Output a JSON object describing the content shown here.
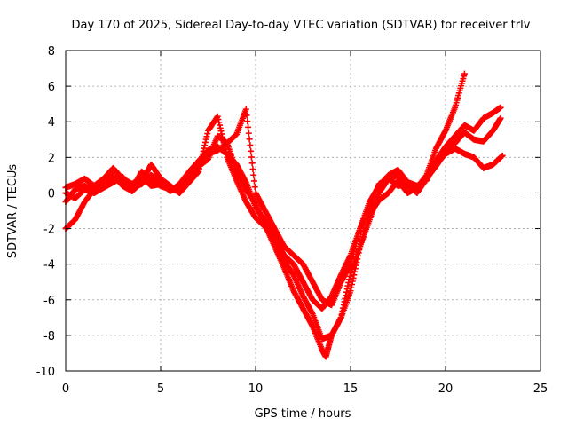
{
  "chart_data": {
    "type": "scatter",
    "title": "Day 170 of 2025, Sidereal Day-to-day VTEC variation (SDTVAR) for receiver trlv",
    "xlabel": "GPS time / hours",
    "ylabel": "SDTVAR / TECUs",
    "xlim": [
      0,
      25
    ],
    "ylim": [
      -10,
      8
    ],
    "xticks": [
      0,
      5,
      10,
      15,
      20,
      25
    ],
    "yticks": [
      -10,
      -8,
      -6,
      -4,
      -2,
      0,
      2,
      4,
      6,
      8
    ],
    "grid": true,
    "marker": "+",
    "color": "#ff0000",
    "series": [
      {
        "x": [
          0,
          0.5,
          1.0,
          1.5,
          2.0,
          2.5,
          3.0,
          3.5,
          4.0,
          4.5,
          5.0,
          5.5,
          6.0,
          6.5,
          7.0,
          7.5,
          8.0,
          8.5,
          9.0,
          9.5,
          10.0,
          10.5,
          11.0,
          11.5,
          12.0,
          12.5,
          13.0,
          13.5,
          14.0,
          14.5,
          15.0,
          15.5,
          16.0,
          16.5,
          17.0,
          17.5,
          18.0,
          18.5,
          19.0,
          19.5,
          20.0,
          20.5,
          21.0,
          21.5,
          22.0,
          22.5,
          22.9
        ],
        "y": [
          0.3,
          0.5,
          0.8,
          0.4,
          0.8,
          1.4,
          0.8,
          0.5,
          0.9,
          0.4,
          0.5,
          0.3,
          0.2,
          1.0,
          1.8,
          2.2,
          2.4,
          2.8,
          3.3,
          4.7,
          0.0,
          -1.0,
          -2.0,
          -3.0,
          -3.5,
          -4.0,
          -5.0,
          -6.0,
          -6.3,
          -5.0,
          -4.0,
          -2.0,
          -0.5,
          0.4,
          1.0,
          1.3,
          0.6,
          0.4,
          0.7,
          1.8,
          2.6,
          3.2,
          3.8,
          3.5,
          4.2,
          4.5,
          4.8
        ]
      },
      {
        "x": [
          0,
          0.5,
          1.0,
          1.5,
          2.0,
          2.5,
          3.0,
          3.5,
          4.0,
          4.5,
          5.0,
          5.5,
          6.0,
          6.5,
          7.0,
          7.5,
          8.0,
          8.5,
          9.0,
          9.5,
          10.0,
          10.5,
          11.0,
          11.5,
          12.0,
          12.5,
          13.0,
          13.5,
          13.7,
          14.0,
          14.5,
          15.0,
          15.5,
          16.0,
          16.5,
          17.0,
          17.5,
          18.0,
          18.5,
          19.0,
          19.5,
          20.0,
          20.5,
          21.0
        ],
        "y": [
          -0.5,
          0.2,
          0.4,
          0.1,
          0.5,
          0.9,
          0.6,
          0.2,
          1.2,
          0.7,
          0.4,
          0.2,
          0.1,
          0.8,
          1.5,
          1.9,
          3.2,
          2.8,
          1.2,
          0.2,
          -0.6,
          -1.8,
          -3.0,
          -4.2,
          -5.5,
          -6.5,
          -7.5,
          -8.8,
          -9.2,
          -8.0,
          -7.0,
          -4.5,
          -3.0,
          -1.5,
          0.0,
          0.8,
          1.0,
          0.4,
          0.3,
          1.0,
          2.5,
          3.5,
          4.8,
          6.7
        ]
      },
      {
        "x": [
          0,
          0.5,
          1.0,
          1.5,
          2.0,
          2.5,
          3.0,
          3.5,
          4.0,
          4.5,
          5.0,
          5.5,
          6.0,
          6.5,
          7.0,
          7.5,
          8.0,
          8.5,
          9.0,
          9.5,
          10.0,
          10.5,
          11.0,
          11.5,
          12.0,
          12.5,
          13.0,
          13.5,
          14.0,
          14.5,
          15.0,
          15.5,
          16.0,
          16.5,
          17.0,
          17.5,
          18.0,
          18.5,
          19.0,
          19.5,
          20.0,
          20.5,
          21.0,
          21.5,
          22.0,
          22.5,
          23.0
        ],
        "y": [
          -2.0,
          -1.5,
          -0.5,
          0.2,
          0.6,
          1.0,
          0.4,
          0.1,
          0.6,
          1.6,
          0.8,
          0.4,
          0.0,
          0.6,
          1.2,
          3.5,
          4.3,
          2.0,
          0.7,
          -0.5,
          -1.4,
          -1.9,
          -2.6,
          -3.8,
          -4.6,
          -5.8,
          -6.8,
          -8.2,
          -8.0,
          -7.0,
          -5.5,
          -3.0,
          -1.2,
          -0.4,
          0.0,
          0.7,
          0.0,
          0.3,
          0.9,
          1.6,
          2.2,
          2.5,
          2.2,
          2.0,
          1.4,
          1.6,
          2.1
        ]
      },
      {
        "x": [
          0,
          0.5,
          1.0,
          1.5,
          2.0,
          2.5,
          3.0,
          3.5,
          4.0,
          4.5,
          5.0,
          5.5,
          6.0,
          6.5,
          7.0,
          7.5,
          8.0,
          8.5,
          9.0,
          9.5,
          10.0,
          10.5,
          11.0,
          11.5,
          12.0,
          12.5,
          13.0,
          13.5,
          14.0,
          14.5,
          15.0,
          15.5,
          16.0,
          16.5,
          17.0,
          17.5,
          18.0,
          18.5,
          19.0,
          19.5,
          20.0,
          20.5,
          21.0,
          21.5,
          22.0,
          22.5,
          22.9
        ],
        "y": [
          0.0,
          -0.3,
          0.2,
          0.0,
          0.3,
          0.6,
          0.9,
          0.3,
          0.5,
          1.0,
          0.6,
          0.1,
          0.5,
          1.2,
          1.8,
          2.4,
          2.6,
          2.2,
          1.6,
          0.6,
          -0.8,
          -1.6,
          -2.5,
          -3.5,
          -4.0,
          -5.0,
          -6.0,
          -6.5,
          -5.8,
          -4.6,
          -3.5,
          -2.0,
          -0.8,
          0.5,
          0.8,
          0.4,
          0.5,
          0.0,
          0.8,
          1.5,
          2.3,
          2.8,
          3.4,
          3.0,
          2.9,
          3.5,
          4.2
        ]
      }
    ]
  }
}
